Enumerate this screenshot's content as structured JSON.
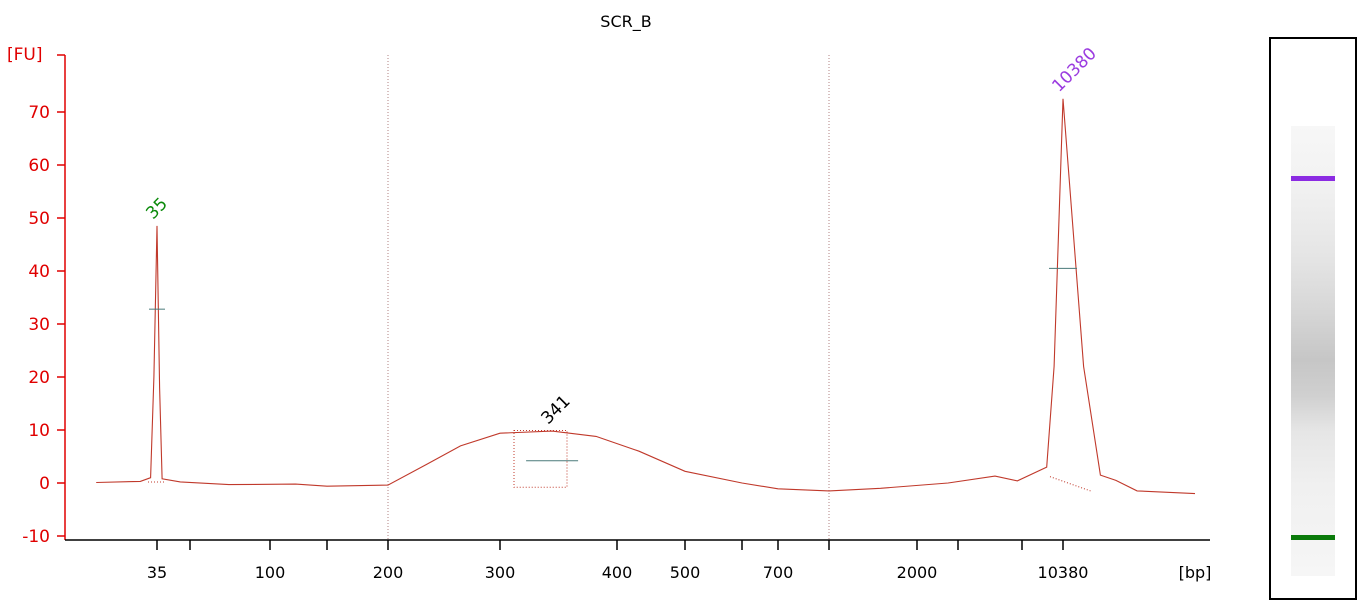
{
  "chart_data": {
    "type": "line",
    "title": "SCR_B",
    "ylabel": "[FU]",
    "xlabel": "[bp]",
    "ylim": [
      -10,
      75
    ],
    "yticks": [
      -10,
      0,
      10,
      20,
      30,
      40,
      50,
      60,
      70
    ],
    "x_scale": "non-linear (electrophoresis migration)",
    "xtick_labels": [
      "35",
      "",
      "100",
      "",
      "200",
      "300",
      "400",
      "500",
      "",
      "700",
      "",
      "2000",
      "",
      "",
      "10380"
    ],
    "vertical_guides_bp": [
      200,
      1000
    ],
    "series": [
      {
        "color": "#c0392b",
        "points": [
          {
            "x": 20,
            "y": 0.1
          },
          {
            "x": 30,
            "y": 0.3
          },
          {
            "x": 33,
            "y": 1.0
          },
          {
            "x": 34,
            "y": 20
          },
          {
            "x": 35,
            "y": 48.5
          },
          {
            "x": 36,
            "y": 18
          },
          {
            "x": 37,
            "y": 0.8
          },
          {
            "x": 45,
            "y": 0.2
          },
          {
            "x": 70,
            "y": -0.3
          },
          {
            "x": 120,
            "y": -0.2
          },
          {
            "x": 150,
            "y": -0.6
          },
          {
            "x": 200,
            "y": -0.4
          },
          {
            "x": 230,
            "y": 3.5
          },
          {
            "x": 260,
            "y": 7.0
          },
          {
            "x": 300,
            "y": 9.4
          },
          {
            "x": 341,
            "y": 9.8
          },
          {
            "x": 380,
            "y": 8.8
          },
          {
            "x": 430,
            "y": 6.0
          },
          {
            "x": 500,
            "y": 2.2
          },
          {
            "x": 600,
            "y": 0
          },
          {
            "x": 700,
            "y": -1.1
          },
          {
            "x": 1000,
            "y": -1.5
          },
          {
            "x": 1600,
            "y": -1.0
          },
          {
            "x": 2500,
            "y": 0
          },
          {
            "x": 3500,
            "y": 1.3
          },
          {
            "x": 5000,
            "y": 0.4
          },
          {
            "x": 8000,
            "y": 3
          },
          {
            "x": 9000,
            "y": 22
          },
          {
            "x": 10380,
            "y": 72.5
          },
          {
            "x": 11500,
            "y": 22
          },
          {
            "x": 12500,
            "y": 1.5
          },
          {
            "x": 13500,
            "y": 0.5
          },
          {
            "x": 15000,
            "y": -1.5
          },
          {
            "x": 20000,
            "y": -2.0
          }
        ]
      }
    ],
    "peak_labels": [
      {
        "label": "35",
        "x": 35,
        "y": 48.5,
        "color": "#0a8a0a",
        "marker_y": 32.8
      },
      {
        "label": "341",
        "x": 341,
        "y": 9.8,
        "color": "#000000",
        "marker_y": 4.2,
        "region_bp": [
          300,
          420
        ]
      },
      {
        "label": "10380",
        "x": 10380,
        "y": 72.5,
        "color": "#9b3be0",
        "marker_y": 40.5
      }
    ],
    "gel_lane": {
      "bands": [
        {
          "color": "#8b2be2",
          "role": "upper marker"
        },
        {
          "color": "#0a7a0a",
          "role": "lower marker"
        }
      ]
    }
  }
}
